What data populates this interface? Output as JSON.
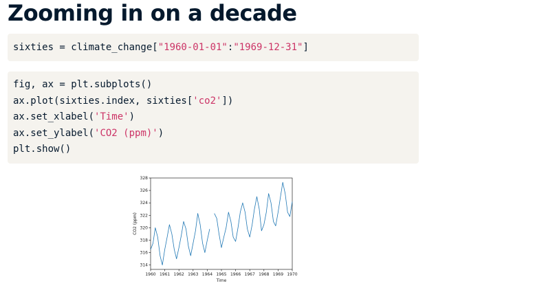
{
  "slide": {
    "title": "Zooming in on a decade"
  },
  "code1": {
    "prefix": "sixties = climate_change[",
    "str1": "\"1960-01-01\"",
    "colon": ":",
    "str2": "\"1969-12-31\"",
    "suffix": "]"
  },
  "code2": {
    "line1": "fig, ax = plt.subplots()",
    "line2_prefix": "ax.plot(sixties.index, sixties[",
    "line2_str": "'co2'",
    "line2_suffix": "])",
    "line3_prefix": "ax.set_xlabel(",
    "line3_str": "'Time'",
    "line3_suffix": ")",
    "line4_prefix": "ax.set_ylabel(",
    "line4_str": "'CO2 (ppm)'",
    "line4_suffix": ")",
    "line5": "plt.show()"
  },
  "chart_data": {
    "type": "line",
    "title": "",
    "xlabel": "Time",
    "ylabel": "CO2 (ppm)",
    "xlim": [
      1960,
      1970
    ],
    "ylim": [
      313.3,
      328
    ],
    "x_ticks": [
      "1960",
      "1961",
      "1962",
      "1963",
      "1964",
      "1965",
      "1966",
      "1967",
      "1968",
      "1969",
      "1970"
    ],
    "y_ticks": [
      314,
      316,
      318,
      320,
      322,
      324,
      326,
      328
    ],
    "grid": false,
    "color": "#1f77b4",
    "series": [
      {
        "x": [
          1960.0,
          1960.17,
          1960.33,
          1960.5,
          1960.67,
          1960.83,
          1961.0,
          1961.17,
          1961.33,
          1961.5,
          1961.67,
          1961.83,
          1962.0,
          1962.17,
          1962.33,
          1962.5,
          1962.67,
          1962.83,
          1963.0,
          1963.17,
          1963.33,
          1963.5,
          1963.67,
          1963.83,
          1964.0,
          1964.17
        ],
        "y": [
          316.5,
          317.5,
          320.0,
          318.5,
          315.5,
          314.0,
          316.5,
          318.5,
          320.5,
          319.0,
          316.5,
          315.0,
          316.8,
          318.8,
          321.0,
          319.8,
          317.0,
          315.5,
          317.5,
          319.5,
          322.3,
          320.5,
          317.5,
          316.0,
          318.0,
          319.8
        ]
      },
      {
        "x": [
          1964.5,
          1964.67,
          1964.83,
          1965.0,
          1965.17,
          1965.33,
          1965.5,
          1965.67,
          1965.83,
          1966.0,
          1966.17,
          1966.33,
          1966.5,
          1966.67,
          1966.83,
          1967.0,
          1967.17,
          1967.33,
          1967.5,
          1967.67,
          1967.83,
          1968.0,
          1968.17,
          1968.33,
          1968.5,
          1968.67,
          1968.83,
          1969.0,
          1969.17,
          1969.33,
          1969.5,
          1969.67,
          1969.83,
          1970.0
        ],
        "y": [
          322.3,
          321.5,
          319.0,
          316.8,
          318.5,
          320.0,
          322.5,
          321.0,
          318.5,
          317.8,
          320.0,
          322.5,
          324.0,
          322.5,
          319.8,
          318.5,
          320.5,
          323.0,
          325.0,
          323.0,
          319.5,
          320.5,
          322.5,
          325.5,
          324.0,
          321.0,
          320.3,
          322.5,
          325.0,
          327.3,
          325.5,
          322.5,
          321.8,
          324.2
        ]
      }
    ]
  }
}
